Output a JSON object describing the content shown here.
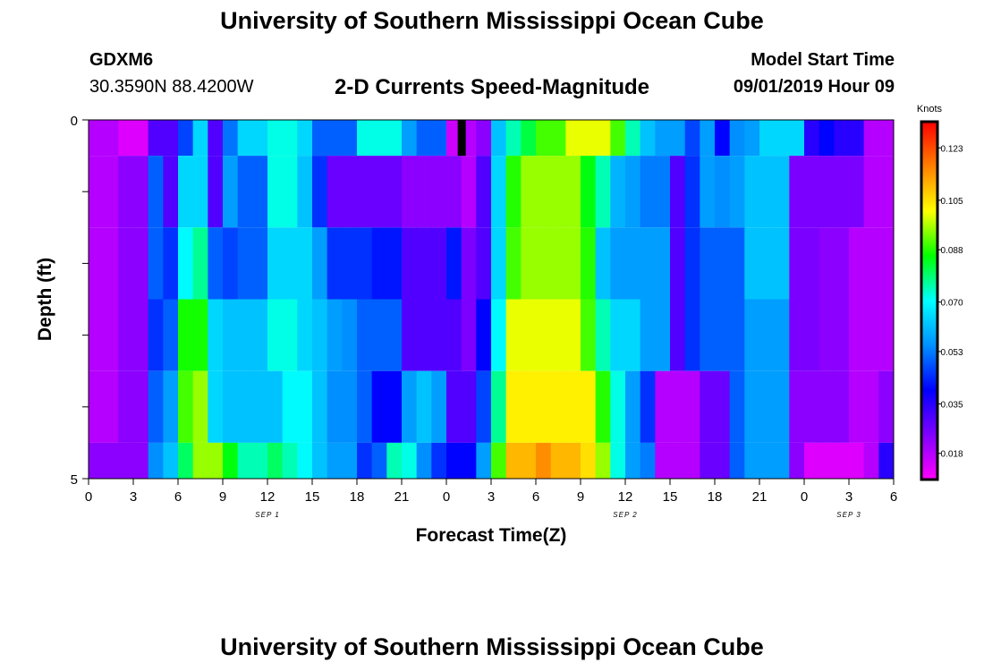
{
  "page": {
    "title_top": "University of Southern Mississippi Ocean Cube",
    "title_bottom": "University of Southern Mississippi Ocean Cube",
    "station_id": "GDXM6",
    "station_coords": "30.3590N 88.4200W",
    "plot_title": "2-D Currents Speed-Magnitude",
    "start_label": "Model Start Time",
    "start_value": "09/01/2019 Hour 09"
  },
  "colors": {
    "colormap": [
      "#ff00ff",
      "#8000ff",
      "#0000ff",
      "#0090ff",
      "#00ffff",
      "#00ff00",
      "#ffff00",
      "#ff8000",
      "#ff0000"
    ],
    "missing": "#000000",
    "axis": "#000000"
  },
  "chart_data": {
    "type": "heatmap",
    "title": "2-D Currents Speed-Magnitude",
    "xlabel": "Forecast Time(Z)",
    "ylabel": "Depth (ft)",
    "x_range_hours": [
      0,
      54
    ],
    "x_tick_hours": [
      0,
      3,
      6,
      9,
      12,
      15,
      18,
      21,
      24,
      27,
      30,
      33,
      36,
      39,
      42,
      45,
      48,
      51,
      54
    ],
    "x_tick_labels": [
      "0",
      "3",
      "6",
      "9",
      "12",
      "15",
      "18",
      "21",
      "0",
      "3",
      "6",
      "9",
      "12",
      "15",
      "18",
      "21",
      "0",
      "3",
      "6"
    ],
    "date_labels": [
      {
        "hour": 12,
        "text": "SEP 1"
      },
      {
        "hour": 36,
        "text": "SEP 2"
      },
      {
        "hour": 51,
        "text": "SEP 3"
      }
    ],
    "y_range": [
      0,
      5
    ],
    "y_tick_labels": [
      "0",
      "5"
    ],
    "y_minor_ticks": [
      1,
      2,
      3,
      4
    ],
    "colorbar": {
      "unit_label": "Knots",
      "min": 0.009,
      "max": 0.132,
      "tick_values": [
        0.018,
        0.035,
        0.053,
        0.07,
        0.088,
        0.105,
        0.123
      ],
      "tick_labels": [
        "0.018",
        "0.035",
        "0.053",
        "0.070",
        "0.088",
        "0.105",
        "0.123"
      ]
    },
    "missing_cells": [
      {
        "hour": 25,
        "layer": 0
      }
    ],
    "layer_bounds_ft": [
      0,
      0.5,
      1.5,
      2.5,
      3.5,
      4.5,
      5
    ],
    "depth_layers": [
      [
        0.018,
        0.018,
        0.013,
        0.013,
        0.03,
        0.03,
        0.047,
        0.065,
        0.03,
        0.052,
        0.065,
        0.065,
        0.072,
        0.072,
        0.065,
        0.05,
        0.05,
        0.05,
        0.072,
        0.072,
        0.072,
        0.057,
        0.05,
        0.05,
        0.015,
        0.018,
        0.023,
        0.062,
        0.075,
        0.082,
        0.09,
        0.09,
        0.1,
        0.1,
        0.1,
        0.09,
        0.075,
        0.062,
        0.057,
        0.057,
        0.047,
        0.057,
        0.04,
        0.055,
        0.057,
        0.065,
        0.065,
        0.065,
        0.035,
        0.04,
        0.035,
        0.035,
        0.018,
        0.018
      ],
      [
        0.018,
        0.018,
        0.023,
        0.023,
        0.05,
        0.03,
        0.065,
        0.065,
        0.03,
        0.057,
        0.05,
        0.05,
        0.072,
        0.072,
        0.062,
        0.045,
        0.027,
        0.027,
        0.027,
        0.027,
        0.027,
        0.023,
        0.023,
        0.023,
        0.023,
        0.018,
        0.03,
        0.065,
        0.088,
        0.095,
        0.095,
        0.095,
        0.095,
        0.085,
        0.075,
        0.06,
        0.057,
        0.053,
        0.053,
        0.03,
        0.045,
        0.057,
        0.055,
        0.057,
        0.062,
        0.062,
        0.062,
        0.025,
        0.025,
        0.025,
        0.025,
        0.025,
        0.018,
        0.018
      ],
      [
        0.018,
        0.018,
        0.023,
        0.023,
        0.05,
        0.045,
        0.07,
        0.077,
        0.05,
        0.047,
        0.05,
        0.05,
        0.065,
        0.065,
        0.065,
        0.057,
        0.045,
        0.045,
        0.045,
        0.042,
        0.042,
        0.03,
        0.03,
        0.03,
        0.042,
        0.025,
        0.03,
        0.065,
        0.09,
        0.095,
        0.095,
        0.095,
        0.095,
        0.088,
        0.062,
        0.057,
        0.057,
        0.057,
        0.057,
        0.03,
        0.045,
        0.05,
        0.05,
        0.05,
        0.062,
        0.062,
        0.062,
        0.025,
        0.025,
        0.023,
        0.023,
        0.018,
        0.018,
        0.018
      ],
      [
        0.018,
        0.018,
        0.023,
        0.023,
        0.045,
        0.05,
        0.087,
        0.087,
        0.065,
        0.062,
        0.062,
        0.062,
        0.072,
        0.072,
        0.065,
        0.062,
        0.057,
        0.055,
        0.05,
        0.05,
        0.05,
        0.03,
        0.03,
        0.03,
        0.03,
        0.025,
        0.04,
        0.07,
        0.1,
        0.1,
        0.1,
        0.1,
        0.1,
        0.09,
        0.075,
        0.065,
        0.065,
        0.057,
        0.057,
        0.03,
        0.045,
        0.05,
        0.05,
        0.05,
        0.057,
        0.057,
        0.057,
        0.025,
        0.025,
        0.023,
        0.023,
        0.018,
        0.018,
        0.018
      ],
      [
        0.018,
        0.018,
        0.023,
        0.023,
        0.05,
        0.057,
        0.09,
        0.095,
        0.065,
        0.062,
        0.062,
        0.062,
        0.062,
        0.07,
        0.07,
        0.062,
        0.055,
        0.055,
        0.05,
        0.04,
        0.04,
        0.057,
        0.062,
        0.057,
        0.03,
        0.03,
        0.047,
        0.077,
        0.103,
        0.103,
        0.103,
        0.103,
        0.103,
        0.103,
        0.088,
        0.072,
        0.057,
        0.045,
        0.018,
        0.018,
        0.018,
        0.027,
        0.027,
        0.05,
        0.057,
        0.057,
        0.057,
        0.023,
        0.023,
        0.023,
        0.023,
        0.018,
        0.018,
        0.023
      ],
      [
        0.023,
        0.023,
        0.023,
        0.023,
        0.055,
        0.062,
        0.08,
        0.095,
        0.095,
        0.085,
        0.075,
        0.075,
        0.08,
        0.075,
        0.07,
        0.062,
        0.057,
        0.057,
        0.045,
        0.05,
        0.075,
        0.072,
        0.055,
        0.045,
        0.04,
        0.04,
        0.057,
        0.09,
        0.11,
        0.11,
        0.115,
        0.11,
        0.11,
        0.105,
        0.095,
        0.072,
        0.057,
        0.053,
        0.018,
        0.018,
        0.018,
        0.027,
        0.027,
        0.05,
        0.057,
        0.057,
        0.057,
        0.023,
        0.013,
        0.013,
        0.013,
        0.013,
        0.018,
        0.035
      ]
    ]
  }
}
